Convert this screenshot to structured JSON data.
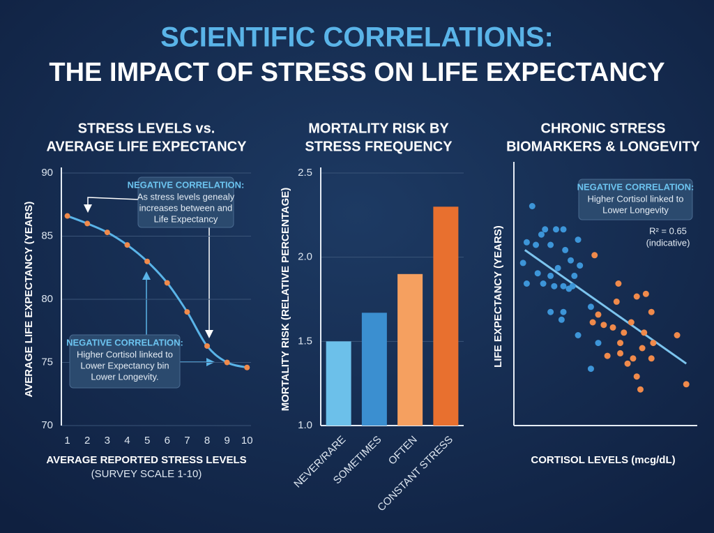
{
  "header": {
    "title": "SCIENTIFIC CORRELATIONS:",
    "subtitle": "THE IMPACT OF STRESS ON LIFE EXPECTANCY"
  },
  "chart_data": [
    {
      "type": "line",
      "title": [
        "STRESS LEVELS vs.",
        "AVERAGE LIFE EXPECTANCY"
      ],
      "x": [
        1,
        2,
        3,
        4,
        5,
        6,
        7,
        8,
        9,
        10
      ],
      "values": [
        86.6,
        86.0,
        85.3,
        84.3,
        83.0,
        81.3,
        79.0,
        76.3,
        75.0,
        74.6
      ],
      "color": "#5ab4e8",
      "marker_color": "#f08a4b",
      "xlim": [
        0.7,
        10.2
      ],
      "xticks": [
        1,
        2,
        3,
        4,
        5,
        6,
        7,
        8,
        9,
        10
      ],
      "ylim": [
        70,
        90
      ],
      "yticks": [
        70,
        75,
        80,
        85,
        90
      ],
      "grid": true,
      "y_label": "AVERAGE LIFE EXPECTANCY (YEARS)",
      "x_label": "AVERAGE REPORTED STRESS LEVELS",
      "x_sublabel": "(SURVEY SCALE 1-10)",
      "annotations": [
        {
          "title": "NEGATIVE CORRELATION:",
          "lines": [
            "As stress levels genealy",
            "increases between and",
            "Life Expectancy"
          ]
        },
        {
          "title": "NEGATIVE CORRELATION:",
          "lines": [
            "Higher Cortisol linked to",
            "Lower Expectancy bin",
            "Lower Longevity."
          ]
        }
      ]
    },
    {
      "type": "bar",
      "title": [
        "MORTALITY RISK BY",
        "STRESS FREQUENCY"
      ],
      "categories": [
        "NEVER/RARE",
        "SOMETIMES",
        "OFTEN",
        "CONSTANT STRESS"
      ],
      "values": [
        1.5,
        1.67,
        1.9,
        2.3
      ],
      "colors": [
        "#6cc0ea",
        "#3b8fd0",
        "#f5a060",
        "#e8702f"
      ],
      "ylim": [
        1.0,
        2.5
      ],
      "yticks": [
        {
          "value": 1,
          "label": "1.0"
        },
        1.5,
        {
          "value": 2,
          "label": "2.0"
        },
        2.5
      ],
      "grid": true,
      "y_label": "MORTALITY RISK (RELATIVE PERCENTAGE)"
    },
    {
      "type": "scatter",
      "title": [
        "CHRONIC STRESS",
        "BIOMARKERS & LONGEVITY"
      ],
      "xlim": [
        0,
        100
      ],
      "ylim": [
        0,
        100
      ],
      "series": [
        {
          "color": "#3d95d8",
          "x": [
            10,
            5,
            7,
            12,
            15,
            17,
            20,
            23,
            27,
            7,
            13,
            16,
            20,
            22,
            24,
            28,
            31,
            33,
            36,
            30,
            27,
            32,
            20,
            27,
            26,
            35,
            42,
            46,
            42,
            35
          ],
          "y": [
            85,
            63,
            71,
            70,
            74,
            76,
            70,
            76,
            76,
            55,
            59,
            55,
            58,
            54,
            61,
            68,
            64,
            58,
            62,
            53,
            54,
            54,
            44,
            44,
            41,
            35,
            46,
            32,
            22,
            72
          ]
        },
        {
          "color": "#f08a4b",
          "x": [
            44,
            57,
            72,
            56,
            67,
            75,
            46,
            49,
            54,
            60,
            64,
            43,
            58,
            71,
            76,
            51,
            58,
            65,
            70,
            75,
            62,
            67,
            69,
            94,
            89
          ],
          "y": [
            66,
            55,
            51,
            48,
            50,
            44,
            43,
            39,
            38,
            36,
            40,
            40,
            32,
            36,
            32,
            27,
            28,
            26,
            30,
            26,
            24,
            19,
            14,
            16,
            35
          ]
        }
      ],
      "trendline": {
        "x": [
          6,
          94
        ],
        "y": [
          68,
          24
        ],
        "color": "#7cc4ee"
      },
      "y_label": "LIFE EXPECTANCY (YEARS)",
      "x_label": "CORTISOL LEVELS (mcg/dL)",
      "annotations": [
        {
          "title": "NEGATIVE CORRELATION:",
          "lines": [
            "Higher Cortisol linked to",
            "Lower Longevity"
          ]
        },
        {
          "title": "R² = 0.65",
          "lines": [
            "(indicative)"
          ]
        }
      ]
    }
  ]
}
